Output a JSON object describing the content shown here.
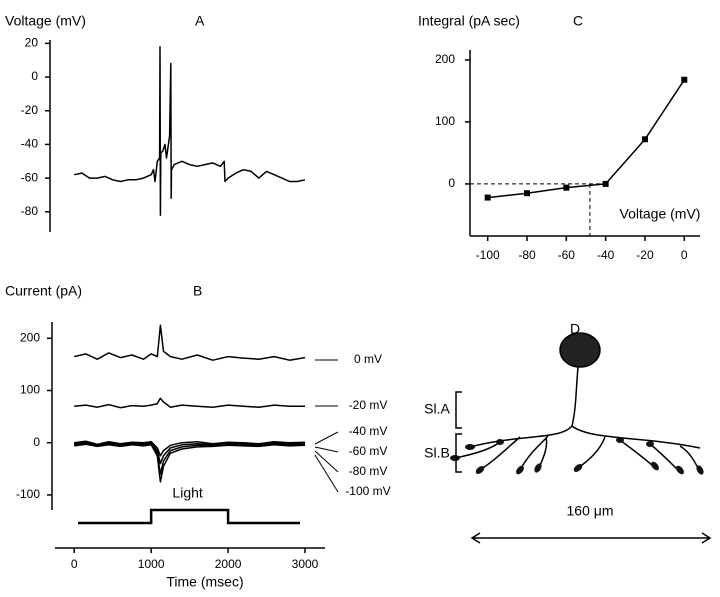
{
  "chart_data": [
    {
      "type": "line",
      "title": "Voltage (mV)",
      "panel": "A",
      "x": [
        0,
        100,
        200,
        300,
        400,
        500,
        600,
        700,
        800,
        900,
        1000,
        1030,
        1050,
        1080,
        1110,
        1115,
        1120,
        1125,
        1150,
        1180,
        1200,
        1240,
        1255,
        1260,
        1265,
        1300,
        1400,
        1500,
        1600,
        1700,
        1800,
        1900,
        1950,
        1960,
        2000,
        2100,
        2200,
        2300,
        2400,
        2500,
        2600,
        2700,
        2800,
        2900,
        3000
      ],
      "series": [
        {
          "color": "#000000",
          "values": [
            -58,
            -57,
            -60,
            -60,
            -59,
            -61,
            -62,
            -61,
            -61,
            -60,
            -58,
            -55,
            -62,
            -50,
            -48,
            18,
            -82,
            -45,
            -44,
            -40,
            -48,
            -35,
            8,
            -72,
            -55,
            -52,
            -50,
            -52,
            -53,
            -52,
            -51,
            -53,
            -50,
            -62,
            -60,
            -57,
            -55,
            -56,
            -60,
            -56,
            -58,
            -60,
            -62,
            -62,
            -61
          ]
        }
      ],
      "xlim": [
        -250,
        3260
      ],
      "ylim": [
        -92,
        22
      ],
      "yticks": [
        20,
        0,
        -20,
        -40,
        -60,
        -80
      ]
    },
    {
      "type": "line",
      "title": "Current (pA)",
      "panel": "B",
      "xlabel": "Time (msec)",
      "x": [
        0,
        150,
        300,
        450,
        600,
        750,
        900,
        1000,
        1080,
        1120,
        1160,
        1250,
        1400,
        1600,
        1800,
        2000,
        2200,
        2400,
        2600,
        2800,
        3000
      ],
      "series": [
        {
          "name": "0 mV",
          "color": "#000000",
          "values": [
            165,
            170,
            160,
            172,
            163,
            168,
            160,
            170,
            165,
            225,
            175,
            165,
            160,
            168,
            158,
            165,
            162,
            160,
            165,
            158,
            163
          ]
        },
        {
          "name": "-20 mV",
          "color": "#000000",
          "values": [
            70,
            72,
            68,
            73,
            67,
            71,
            70,
            72,
            75,
            85,
            78,
            68,
            72,
            70,
            68,
            72,
            70,
            68,
            72,
            70,
            70
          ]
        },
        {
          "name": "-40 mV",
          "color": "#000000",
          "values": [
            0,
            3,
            -3,
            2,
            -2,
            1,
            0,
            2,
            -10,
            -25,
            -15,
            -5,
            0,
            2,
            -2,
            1,
            0,
            -2,
            2,
            0,
            1
          ]
        },
        {
          "name": "-60 mV",
          "color": "#000000",
          "values": [
            -2,
            1,
            -4,
            0,
            -3,
            0,
            -2,
            0,
            -15,
            -40,
            -25,
            -10,
            -4,
            -2,
            -3,
            -1,
            -2,
            -3,
            0,
            -2,
            -1
          ]
        },
        {
          "name": "-80 mV",
          "color": "#000000",
          "values": [
            -4,
            -1,
            -5,
            -2,
            -5,
            -2,
            -4,
            -2,
            -20,
            -60,
            -35,
            -15,
            -8,
            -5,
            -5,
            -3,
            -4,
            -5,
            -2,
            -4,
            -3
          ]
        },
        {
          "name": "-100 mV",
          "color": "#000000",
          "values": [
            -6,
            -3,
            -7,
            -4,
            -7,
            -4,
            -6,
            -4,
            -25,
            -75,
            -45,
            -20,
            -12,
            -8,
            -7,
            -5,
            -6,
            -7,
            -4,
            -6,
            -5
          ]
        }
      ],
      "stimulus": {
        "label": "Light",
        "on": 1000,
        "off": 2000
      },
      "xlim": [
        -250,
        3260
      ],
      "xticks": [
        0,
        1000,
        2000,
        3000
      ],
      "ylim": [
        -125,
        235
      ],
      "yticks": [
        200,
        100,
        0,
        -100
      ]
    },
    {
      "type": "line",
      "title": "Integral (pA sec)",
      "panel": "C",
      "xlabel": "Voltage (mV)",
      "marker": "square",
      "x": [
        -100,
        -80,
        -60,
        -40,
        -20,
        0
      ],
      "series": [
        {
          "color": "#000000",
          "values": [
            -22,
            -15,
            -6,
            0,
            72,
            168
          ]
        }
      ],
      "dashed_x": -48,
      "dashed_y": 0,
      "xlim": [
        -109,
        8
      ],
      "xticks": [
        -100,
        -80,
        -60,
        -40,
        -20,
        0
      ],
      "ylim": [
        -84,
        216
      ],
      "yticks": [
        200,
        100,
        0
      ]
    },
    {
      "type": "diagram",
      "panel": "D",
      "layers": [
        "Sl.A",
        "Sl.B"
      ],
      "scale_label": "160 μm"
    }
  ]
}
